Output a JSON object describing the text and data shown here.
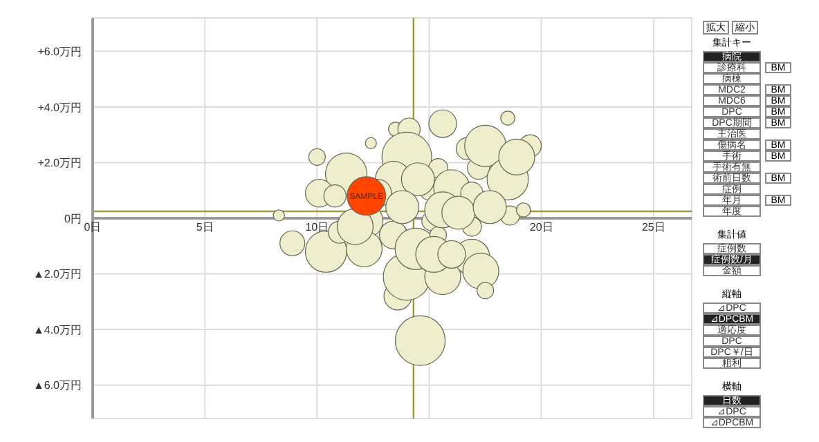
{
  "chart_data": [
    {
      "type": "bubble",
      "xlim": [
        0,
        26.7
      ],
      "ylim": [
        -7.2,
        7.2
      ],
      "xticks": [
        {
          "value": 0,
          "label": "0日"
        },
        {
          "value": 5,
          "label": "5日"
        },
        {
          "value": 10,
          "label": "10日"
        },
        {
          "value": 15,
          "label": null
        },
        {
          "value": 20,
          "label": "20日"
        },
        {
          "value": 25,
          "label": "25日"
        }
      ],
      "yticks": [
        {
          "value": -6,
          "label": "▲6.0万円"
        },
        {
          "value": -4,
          "label": "▲4.0万円"
        },
        {
          "value": -2,
          "label": "▲2.0万円"
        },
        {
          "value": 0,
          "label": "0円"
        },
        {
          "value": 2,
          "label": "+2.0万円"
        },
        {
          "value": 4,
          "label": "+4.0万円"
        },
        {
          "value": 6,
          "label": "+6.0万円"
        }
      ],
      "grid": true,
      "ref_lines": [
        {
          "axis": "x",
          "value": 14.3,
          "label": null,
          "color": "#9a9a40"
        },
        {
          "axis": "y",
          "value": 0.25,
          "label": null,
          "color": "#9a9a40"
        }
      ],
      "annotations": [
        {
          "text": "SAMPLE",
          "x": 12.2,
          "y": 0.8
        }
      ],
      "series": [
        {
          "color": "#eeeecc",
          "x": [
            8.3,
            8.9,
            10.4,
            10.0,
            11.3,
            10.1,
            10.8,
            11.0,
            12.4,
            12.2,
            12.1,
            13.4,
            13.5,
            14.1,
            14.0,
            13.4,
            13.6,
            14.0,
            14.6,
            14.4,
            15.0,
            15.1,
            15.4,
            15.6,
            15.4,
            16.0,
            15.6,
            16.7,
            16.9,
            16.9,
            17.2,
            17.5,
            16.9,
            17.3,
            17.5,
            18.5,
            18.5,
            18.6,
            19.2,
            19.5,
            18.9,
            15.6,
            14.5,
            12.7,
            11.7,
            13.8,
            16.3,
            17.7,
            15.2,
            16.0
          ],
          "values": [
            0.1,
            -0.9,
            -1.2,
            2.2,
            1.6,
            0.9,
            0.8,
            -0.5,
            2.7,
            -0.1,
            -1.1,
            -0.6,
            3.2,
            3.2,
            2.2,
            1.4,
            -2.8,
            -2.1,
            -4.4,
            -1.1,
            1.0,
            -0.1,
            -0.6,
            3.4,
            1.8,
            1.1,
            -2.1,
            2.5,
            0.9,
            -0.3,
            1.8,
            2.6,
            -1.4,
            -1.9,
            -2.6,
            3.6,
            1.4,
            0.1,
            0.3,
            2.6,
            2.2,
            0.3,
            1.4,
            0.9,
            -0.3,
            0.4,
            0.2,
            0.4,
            -1.3,
            -1.3
          ],
          "sizes": [
            0.05,
            0.25,
            0.69,
            0.11,
            0.69,
            0.31,
            0.2,
            0.2,
            0.05,
            0.44,
            0.52,
            0.31,
            0.08,
            0.2,
            1,
            0.52,
            0.31,
            0.89,
            1,
            0.69,
            0.15,
            0.15,
            0.11,
            0.31,
            0.15,
            0.52,
            0.52,
            0.2,
            0.2,
            0.15,
            0.2,
            0.69,
            0.52,
            0.52,
            0.11,
            0.08,
            0.69,
            0.15,
            0.08,
            0.2,
            0.52,
            0.52,
            0.44,
            0.31,
            0.52,
            0.44,
            0.44,
            0.44,
            0.52,
            0.31
          ]
        },
        {
          "color": "#ff4500",
          "x": [
            12.2
          ],
          "values": [
            0.8
          ],
          "sizes": [
            0.6
          ]
        }
      ]
    },
    {
      "type": "other",
      "annotations": [
        "拡大",
        "縮小",
        "集計キー",
        "病院",
        "診療科",
        "BM",
        "病棟",
        "MDC2",
        "BM",
        "MDC6",
        "BM",
        "DPC",
        "BM",
        "DPC期間",
        "BM",
        "主治医",
        "傷病名",
        "BM",
        "手術",
        "BM",
        "手術有無",
        "術前日数",
        "BM",
        "症例",
        "年月",
        "BM",
        "年度",
        "集計値",
        "症例数",
        "症例数/月",
        "金額",
        "縦軸",
        "⊿DPC",
        "⊿DPCBM",
        "適応度",
        "DPC",
        "DPC￥/日",
        "粗利",
        "横軸",
        "日数",
        "⊿DPC",
        "⊿DPCBM"
      ]
    }
  ]
}
